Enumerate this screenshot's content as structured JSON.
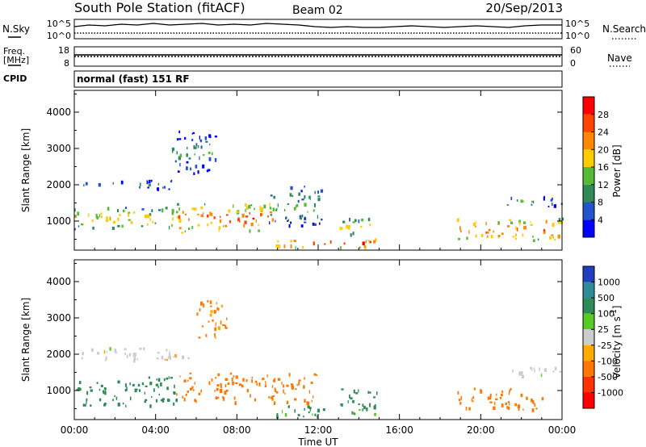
{
  "header": {
    "station": "South Pole Station (fitACF)",
    "beam": "Beam 02",
    "date": "20/Sep/2013"
  },
  "strips": {
    "nsky_label": "N.Sky",
    "nsearch_label": "N.Search",
    "count_ticks": [
      "10^5",
      "10^0"
    ],
    "freq_label_line1": "Freq.",
    "freq_label_line2": "[MHz]",
    "freq_ticks": [
      "18",
      "8"
    ],
    "nave_label": "Nave",
    "nave_ticks": [
      "60",
      "0"
    ],
    "cpid_label": "CPID",
    "cpid_value": "normal (fast) 151 RF"
  },
  "chart_data": [
    {
      "type": "heatmap",
      "title": "",
      "xlabel": "Time UT",
      "ylabel": "Slant Range [km]",
      "x": [
        "00:00",
        "04:00",
        "08:00",
        "12:00",
        "16:00",
        "20:00",
        "00:00"
      ],
      "xlim": [
        0,
        24
      ],
      "ylim": [
        200,
        4600
      ],
      "y_ticks": [
        1000,
        2000,
        3000,
        4000
      ],
      "colorbar": {
        "label": "Power [dB]",
        "ticks": [
          "4",
          "8",
          "12",
          "16",
          "20",
          "24",
          "28"
        ],
        "colors": [
          "#0000ff",
          "#2255cc",
          "#2e8b57",
          "#55bb33",
          "#ffcc00",
          "#ff8800",
          "#ff4400",
          "#ff0000"
        ]
      },
      "series": [
        {
          "time_start": 0.0,
          "time_end": 5.2,
          "range_start": 800,
          "range_end": 1400,
          "value": 16
        },
        {
          "time_start": 0.3,
          "time_end": 5.0,
          "range_start": 1900,
          "range_end": 2150,
          "value": 6
        },
        {
          "time_start": 5.0,
          "time_end": 9.8,
          "range_start": 700,
          "range_end": 1500,
          "value": 22
        },
        {
          "time_start": 9.5,
          "time_end": 12.2,
          "range_start": 900,
          "range_end": 2000,
          "value": 10
        },
        {
          "time_start": 9.8,
          "time_end": 15.0,
          "range_start": 300,
          "range_end": 550,
          "value": 22
        },
        {
          "time_start": 13.0,
          "time_end": 14.8,
          "range_start": 600,
          "range_end": 1100,
          "value": 16
        },
        {
          "time_start": 18.8,
          "time_end": 24.0,
          "range_start": 500,
          "range_end": 1100,
          "value": 22
        },
        {
          "time_start": 21.0,
          "time_end": 24.0,
          "range_start": 1400,
          "range_end": 1700,
          "value": 8
        },
        {
          "time_start": 4.8,
          "time_end": 7.0,
          "range_start": 2300,
          "range_end": 3500,
          "value": 6
        }
      ]
    },
    {
      "type": "heatmap",
      "title": "",
      "xlabel": "Time UT",
      "ylabel": "Slant Range [km]",
      "x": [
        "00:00",
        "04:00",
        "08:00",
        "12:00",
        "16:00",
        "20:00",
        "00:00"
      ],
      "xlim": [
        0,
        24
      ],
      "ylim": [
        200,
        4600
      ],
      "y_ticks": [
        1000,
        2000,
        3000,
        4000
      ],
      "colorbar": {
        "label": "Velocity [m s^-1]",
        "ticks": [
          "1000",
          "500",
          "100",
          "25",
          "-25",
          "-100",
          "-500",
          "-1000"
        ],
        "colors": [
          "#1f3fbf",
          "#2e8b9a",
          "#2e8b57",
          "#55cc22",
          "#cccccc",
          "#ffaa00",
          "#ff7700",
          "#ff3300",
          "#ff0000"
        ]
      },
      "series": [
        {
          "time_start": 0.3,
          "time_end": 6.0,
          "range_start": 1850,
          "range_end": 2200,
          "value": 0
        },
        {
          "time_start": 0.0,
          "time_end": 5.0,
          "range_start": 600,
          "range_end": 1400,
          "value": 200
        },
        {
          "time_start": 5.0,
          "time_end": 12.0,
          "range_start": 700,
          "range_end": 1500,
          "value": -300
        },
        {
          "time_start": 9.8,
          "time_end": 15.0,
          "range_start": 300,
          "range_end": 600,
          "value": 150
        },
        {
          "time_start": 13.0,
          "time_end": 15.0,
          "range_start": 600,
          "range_end": 1100,
          "value": 200
        },
        {
          "time_start": 18.8,
          "time_end": 23.0,
          "range_start": 500,
          "range_end": 1100,
          "value": -200
        },
        {
          "time_start": 21.0,
          "time_end": 24.0,
          "range_start": 1400,
          "range_end": 1700,
          "value": 0
        },
        {
          "time_start": 6.0,
          "time_end": 7.5,
          "range_start": 2400,
          "range_end": 3500,
          "value": -150
        }
      ]
    }
  ]
}
